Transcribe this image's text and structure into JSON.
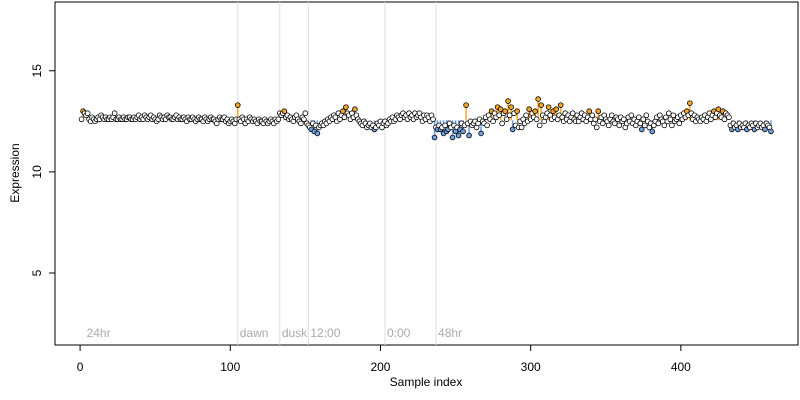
{
  "chart_data": {
    "type": "scatter",
    "xlabel": "Sample index",
    "ylabel": "Expression",
    "xlim": [
      -16.7,
      478
    ],
    "ylim": [
      1.44,
      18.4
    ],
    "xticks": [
      0,
      100,
      200,
      300,
      400
    ],
    "yticks": [
      5,
      10,
      15
    ],
    "baseline": 12.55,
    "threshold": 0.4,
    "point_color": "#ffffff",
    "above_color": "#f5a623",
    "below_color": "#6f9fe0",
    "vlines": [
      105,
      133,
      152,
      203,
      237
    ],
    "annotations": [
      {
        "x": 3,
        "label": "24hr"
      },
      {
        "x": 105,
        "label": "dawn"
      },
      {
        "x": 133,
        "label": "dusk"
      },
      {
        "x": 152,
        "label": "12:00"
      },
      {
        "x": 203,
        "label": "0:00"
      },
      {
        "x": 237,
        "label": "48hr"
      }
    ],
    "x": [
      1,
      2,
      3,
      4,
      5,
      6,
      7,
      8,
      9,
      10,
      11,
      12,
      13,
      14,
      15,
      16,
      17,
      18,
      19,
      20,
      21,
      22,
      23,
      24,
      25,
      26,
      27,
      28,
      29,
      30,
      31,
      32,
      33,
      34,
      35,
      36,
      37,
      38,
      39,
      40,
      41,
      42,
      43,
      44,
      45,
      46,
      47,
      48,
      49,
      50,
      51,
      52,
      53,
      54,
      55,
      56,
      57,
      58,
      59,
      60,
      61,
      62,
      63,
      64,
      65,
      66,
      67,
      68,
      69,
      70,
      71,
      72,
      73,
      74,
      75,
      76,
      77,
      78,
      79,
      80,
      81,
      82,
      83,
      84,
      85,
      86,
      87,
      88,
      89,
      90,
      91,
      92,
      93,
      94,
      95,
      96,
      97,
      98,
      99,
      100,
      101,
      102,
      103,
      104,
      105,
      106,
      107,
      108,
      109,
      110,
      111,
      112,
      113,
      114,
      115,
      116,
      117,
      118,
      119,
      120,
      121,
      122,
      123,
      124,
      125,
      126,
      127,
      128,
      129,
      130,
      131,
      132,
      133,
      134,
      135,
      136,
      137,
      138,
      139,
      140,
      141,
      142,
      143,
      144,
      145,
      146,
      147,
      148,
      149,
      150,
      151,
      152,
      153,
      154,
      155,
      156,
      157,
      158,
      159,
      160,
      161,
      162,
      163,
      164,
      165,
      166,
      167,
      168,
      169,
      170,
      171,
      172,
      173,
      174,
      175,
      176,
      177,
      178,
      179,
      180,
      181,
      182,
      183,
      184,
      185,
      186,
      187,
      188,
      189,
      190,
      191,
      192,
      193,
      194,
      195,
      196,
      197,
      198,
      199,
      200,
      201,
      202,
      203,
      204,
      205,
      206,
      207,
      208,
      209,
      210,
      211,
      212,
      213,
      214,
      215,
      216,
      217,
      218,
      219,
      220,
      221,
      222,
      223,
      224,
      225,
      226,
      227,
      228,
      229,
      230,
      231,
      232,
      233,
      234,
      235,
      236,
      237,
      238,
      239,
      240,
      241,
      242,
      243,
      244,
      245,
      246,
      247,
      248,
      249,
      250,
      251,
      252,
      253,
      254,
      255,
      256,
      257,
      258,
      259,
      260,
      261,
      262,
      263,
      264,
      265,
      266,
      267,
      268,
      269,
      270,
      271,
      272,
      273,
      274,
      275,
      276,
      277,
      278,
      279,
      280,
      281,
      282,
      283,
      284,
      285,
      286,
      287,
      288,
      289,
      290,
      291,
      292,
      293,
      294,
      295,
      296,
      297,
      298,
      299,
      300,
      301,
      302,
      303,
      304,
      305,
      306,
      307,
      308,
      309,
      310,
      311,
      312,
      313,
      314,
      315,
      316,
      317,
      318,
      319,
      320,
      321,
      322,
      323,
      324,
      325,
      326,
      327,
      328,
      329,
      330,
      331,
      332,
      333,
      334,
      335,
      336,
      337,
      338,
      339,
      340,
      341,
      342,
      343,
      344,
      345,
      346,
      347,
      348,
      349,
      350,
      351,
      352,
      353,
      354,
      355,
      356,
      357,
      358,
      359,
      360,
      361,
      362,
      363,
      364,
      365,
      366,
      367,
      368,
      369,
      370,
      371,
      372,
      373,
      374,
      375,
      376,
      377,
      378,
      379,
      380,
      381,
      382,
      383,
      384,
      385,
      386,
      387,
      388,
      389,
      390,
      391,
      392,
      393,
      394,
      395,
      396,
      397,
      398,
      399,
      400,
      401,
      402,
      403,
      404,
      405,
      406,
      407,
      408,
      409,
      410,
      411,
      412,
      413,
      414,
      415,
      416,
      417,
      418,
      419,
      420,
      421,
      422,
      423,
      424,
      425,
      426,
      427,
      428,
      429,
      430,
      431,
      432,
      433,
      434,
      435,
      436,
      437,
      438,
      439,
      440,
      441,
      442,
      443,
      444,
      445,
      446,
      447,
      448,
      449,
      450,
      451,
      452,
      453,
      454,
      455,
      456,
      457,
      458,
      459,
      460
    ],
    "values": [
      12.6,
      13.0,
      12.9,
      12.8,
      12.9,
      12.6,
      12.5,
      12.7,
      12.6,
      12.5,
      12.6,
      12.7,
      12.6,
      12.8,
      12.7,
      12.6,
      12.7,
      12.6,
      12.6,
      12.7,
      12.6,
      12.7,
      12.9,
      12.6,
      12.6,
      12.7,
      12.6,
      12.6,
      12.7,
      12.6,
      12.6,
      12.7,
      12.7,
      12.6,
      12.6,
      12.7,
      12.6,
      12.7,
      12.8,
      12.6,
      12.7,
      12.6,
      12.8,
      12.7,
      12.6,
      12.7,
      12.8,
      12.6,
      12.7,
      12.6,
      12.5,
      12.6,
      12.8,
      12.7,
      12.6,
      12.7,
      12.6,
      12.8,
      12.7,
      12.7,
      12.6,
      12.6,
      12.7,
      12.8,
      12.6,
      12.7,
      12.6,
      12.6,
      12.7,
      12.6,
      12.5,
      12.7,
      12.6,
      12.6,
      12.7,
      12.6,
      12.5,
      12.6,
      12.7,
      12.6,
      12.6,
      12.5,
      12.7,
      12.6,
      12.5,
      12.6,
      12.7,
      12.6,
      12.6,
      12.5,
      12.4,
      12.6,
      12.7,
      12.6,
      12.6,
      12.7,
      12.5,
      12.6,
      12.4,
      12.5,
      12.6,
      12.5,
      12.4,
      12.6,
      13.3,
      12.6,
      12.5,
      12.7,
      12.6,
      12.4,
      12.6,
      12.5,
      12.7,
      12.6,
      12.5,
      12.6,
      12.5,
      12.4,
      12.6,
      12.5,
      12.5,
      12.4,
      12.6,
      12.5,
      12.4,
      12.5,
      12.6,
      12.5,
      12.4,
      12.6,
      12.5,
      12.6,
      12.9,
      12.8,
      12.9,
      13.0,
      12.7,
      12.8,
      12.6,
      12.7,
      12.6,
      12.5,
      12.7,
      12.8,
      12.6,
      12.5,
      12.4,
      12.7,
      12.6,
      12.9,
      12.4,
      12.3,
      12.2,
      12.1,
      12.4,
      12.0,
      12.3,
      11.9,
      12.2,
      12.3,
      12.4,
      12.3,
      12.5,
      12.4,
      12.6,
      12.5,
      12.7,
      12.6,
      12.8,
      12.7,
      12.5,
      12.9,
      12.6,
      12.8,
      13.0,
      12.7,
      13.2,
      12.9,
      12.8,
      12.6,
      12.9,
      12.7,
      13.1,
      12.8,
      12.6,
      12.5,
      12.4,
      12.3,
      12.5,
      12.4,
      12.2,
      12.3,
      12.4,
      12.2,
      12.3,
      12.1,
      12.2,
      12.4,
      12.3,
      12.5,
      12.2,
      12.4,
      12.5,
      12.3,
      12.4,
      12.6,
      12.5,
      12.7,
      12.5,
      12.6,
      12.8,
      12.7,
      12.6,
      12.8,
      12.9,
      12.7,
      12.8,
      12.6,
      12.9,
      12.7,
      12.8,
      12.6,
      12.9,
      12.7,
      12.8,
      12.9,
      12.7,
      12.5,
      12.8,
      12.6,
      12.8,
      12.7,
      12.5,
      12.8,
      12.6,
      11.7,
      12.2,
      12.1,
      12.3,
      12.1,
      12.2,
      11.9,
      12.3,
      12.0,
      12.1,
      12.4,
      12.2,
      11.7,
      12.3,
      12.0,
      12.2,
      11.8,
      12.1,
      12.4,
      12.0,
      12.3,
      13.3,
      12.4,
      11.8,
      12.5,
      12.3,
      12.4,
      12.5,
      12.2,
      12.4,
      12.6,
      11.9,
      12.5,
      12.4,
      12.7,
      12.3,
      12.8,
      12.6,
      13.0,
      12.5,
      12.9,
      12.7,
      13.2,
      12.8,
      13.1,
      12.4,
      12.9,
      13.0,
      12.6,
      13.5,
      12.8,
      13.2,
      12.1,
      12.9,
      12.3,
      13.0,
      12.2,
      12.5,
      12.2,
      12.6,
      12.4,
      12.8,
      12.5,
      13.1,
      12.6,
      12.9,
      12.7,
      13.0,
      12.6,
      13.6,
      12.3,
      13.3,
      12.8,
      12.5,
      12.7,
      12.9,
      13.2,
      12.8,
      12.6,
      13.0,
      12.7,
      13.1,
      12.6,
      12.8,
      13.3,
      12.7,
      12.5,
      12.9,
      12.6,
      12.8,
      12.5,
      12.7,
      12.9,
      12.6,
      12.5,
      12.8,
      12.5,
      12.7,
      12.9,
      12.6,
      12.8,
      12.5,
      12.7,
      13.0,
      12.6,
      12.8,
      12.4,
      12.6,
      12.2,
      13.0,
      12.5,
      12.7,
      12.4,
      12.8,
      12.6,
      12.5,
      12.3,
      12.6,
      12.8,
      12.5,
      12.4,
      12.7,
      12.6,
      12.3,
      12.7,
      12.5,
      12.6,
      12.2,
      12.4,
      12.7,
      12.5,
      12.8,
      12.4,
      12.6,
      12.3,
      12.5,
      12.7,
      12.4,
      12.1,
      12.6,
      12.3,
      12.8,
      12.5,
      12.2,
      12.4,
      12.0,
      12.3,
      12.5,
      12.7,
      12.4,
      12.8,
      12.6,
      12.5,
      12.3,
      12.7,
      12.5,
      12.9,
      12.6,
      12.3,
      12.8,
      12.5,
      12.6,
      12.7,
      12.4,
      12.8,
      12.6,
      12.9,
      12.7,
      13.0,
      12.8,
      13.4,
      12.9,
      12.6,
      12.8,
      12.5,
      12.7,
      12.6,
      12.5,
      12.7,
      12.6,
      12.8,
      12.5,
      12.7,
      12.9,
      12.6,
      12.8,
      13.0,
      12.7,
      12.9,
      13.1,
      12.8,
      12.7,
      13.0,
      12.6,
      12.9,
      12.8,
      12.7,
      12.3,
      12.1,
      12.4,
      12.2,
      12.3,
      12.1,
      12.4,
      12.2,
      12.3,
      12.2,
      12.4,
      12.1,
      12.3,
      12.2,
      12.4,
      12.3,
      12.1,
      12.4,
      12.2,
      12.3,
      12.4,
      12.2,
      12.3,
      12.1,
      12.4,
      12.3,
      12.2,
      12.0
    ]
  }
}
